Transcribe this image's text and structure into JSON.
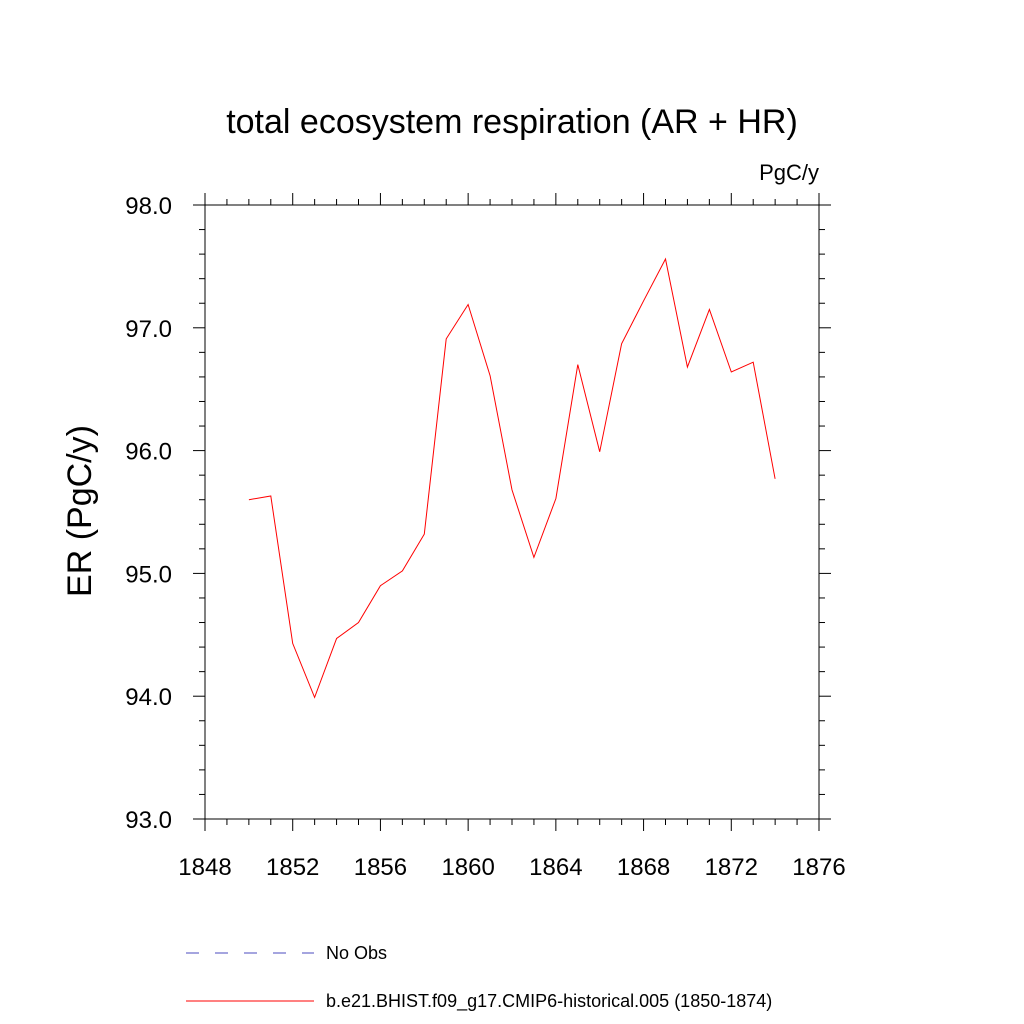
{
  "chart_data": {
    "type": "line",
    "title": "total ecosystem respiration (AR + HR)",
    "units_label": "PgC/y",
    "ylabel": "ER  (PgC/y)",
    "xlabel": "",
    "xlim": [
      1848,
      1876
    ],
    "ylim": [
      93.0,
      98.0
    ],
    "x_ticks": [
      "1848",
      "1852",
      "1856",
      "1860",
      "1864",
      "1868",
      "1872",
      "1876"
    ],
    "y_ticks": [
      "93.0",
      "94.0",
      "95.0",
      "96.0",
      "97.0",
      "98.0"
    ],
    "grid": false,
    "legend_position": "bottom",
    "series": [
      {
        "name": "b.e21.BHIST.f09_g17.CMIP6-historical.005 (1850-1874)",
        "color": "#ff0000",
        "style": "solid",
        "x": [
          1850,
          1851,
          1852,
          1853,
          1854,
          1855,
          1856,
          1857,
          1858,
          1859,
          1860,
          1861,
          1862,
          1863,
          1864,
          1865,
          1866,
          1867,
          1868,
          1869,
          1870,
          1871,
          1872,
          1873,
          1874
        ],
        "values": [
          95.6,
          95.63,
          94.43,
          93.99,
          94.47,
          94.6,
          94.9,
          95.02,
          95.32,
          96.91,
          97.19,
          96.61,
          95.68,
          95.13,
          95.61,
          96.7,
          95.99,
          96.87,
          97.22,
          97.56,
          96.68,
          97.15,
          96.64,
          96.72,
          95.77
        ]
      }
    ],
    "legend": [
      {
        "label": "No Obs",
        "color": "#4b4bbf",
        "style": "dashed"
      },
      {
        "label": "b.e21.BHIST.f09_g17.CMIP6-historical.005 (1850-1874)",
        "color": "#ff0000",
        "style": "solid"
      }
    ]
  }
}
